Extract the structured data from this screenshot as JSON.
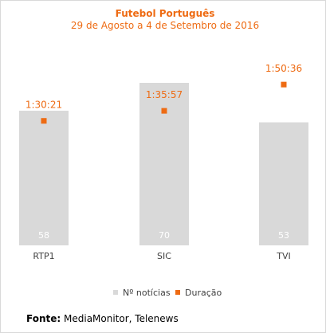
{
  "chart_data": {
    "type": "bar",
    "title": "Futebol Português",
    "subtitle": "29 de Agosto a 4 de Setembro de 2016",
    "categories": [
      "RTP1",
      "SIC",
      "TVI"
    ],
    "series": [
      {
        "name": "Nº notícias",
        "kind": "bar",
        "color": "#d9d9d9",
        "values": [
          58,
          70,
          53
        ],
        "value_labels": [
          "58",
          "70",
          "53"
        ]
      },
      {
        "name": "Duração",
        "kind": "marker",
        "color": "#ee6b13",
        "values": [
          "1:30:21",
          "1:35:57",
          "1:50:36"
        ],
        "value_labels": [
          "1:30:21",
          "1:35:57",
          "1:50:36"
        ]
      }
    ],
    "bar_axis": {
      "min": 0,
      "max": 70
    },
    "marker_axis_minutes": {
      "min": 0,
      "max": 120
    },
    "legend_position": "bottom",
    "grid": false
  },
  "source": {
    "label": "Fonte:",
    "text": "MediaMonitor, Telenews"
  },
  "colors": {
    "accent": "#ee6b13",
    "bar": "#d9d9d9",
    "bar_label": "#ffffff",
    "category_text": "#404040",
    "legend_text": "#404040"
  }
}
